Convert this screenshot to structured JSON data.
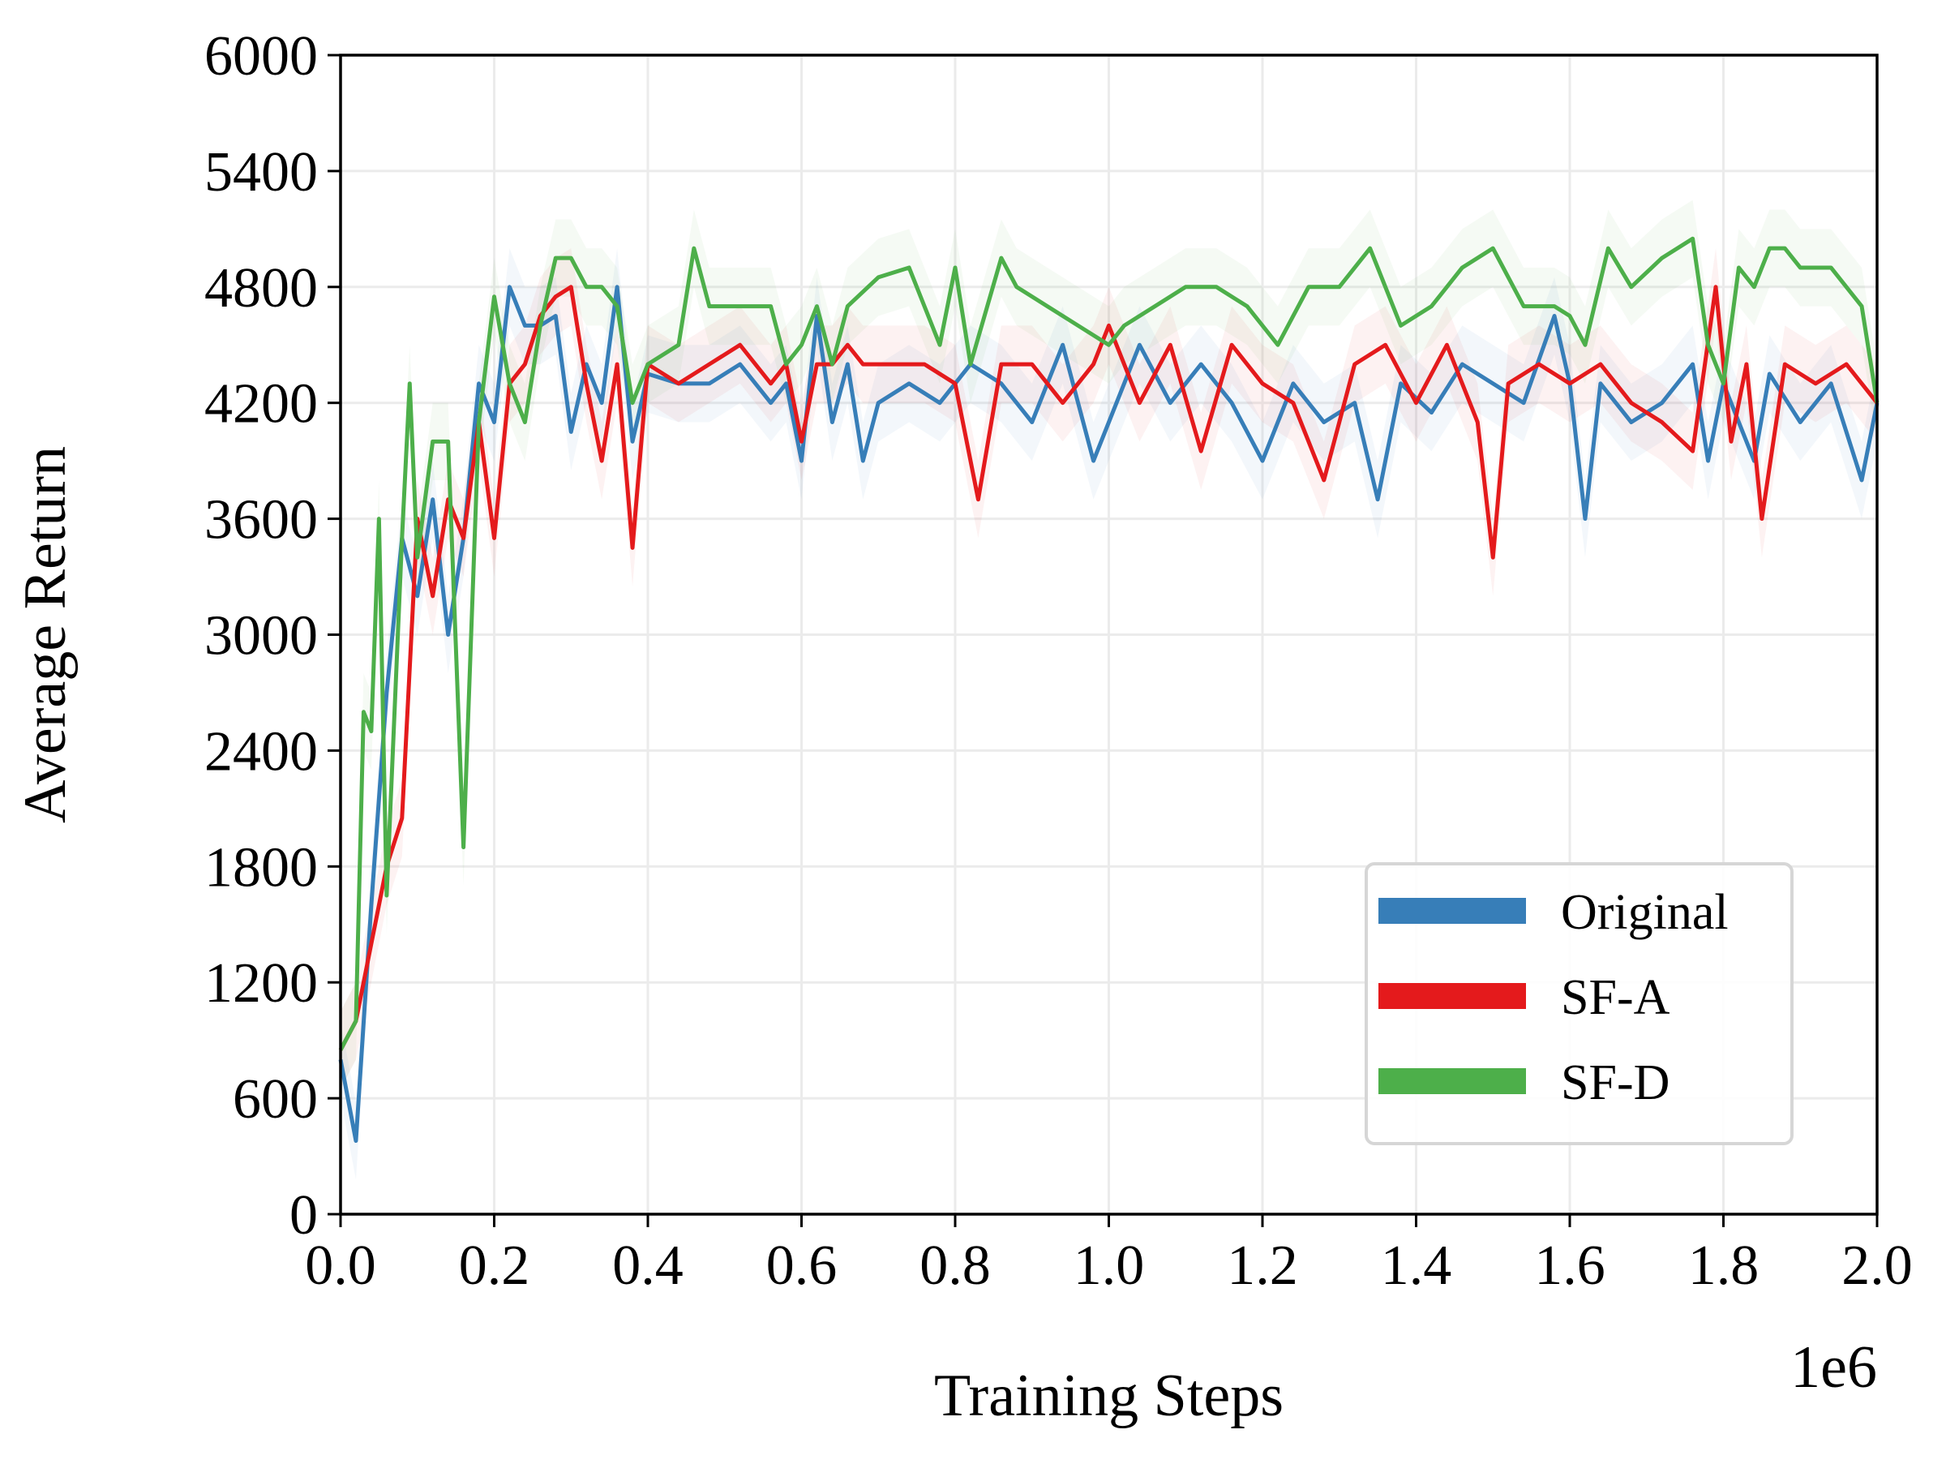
{
  "chart_data": {
    "type": "line",
    "title": "",
    "xlabel": "Training Steps",
    "ylabel": "Average Return",
    "x_offset_label": "1e6",
    "xlim": [
      0.0,
      2.0
    ],
    "ylim": [
      0,
      6000
    ],
    "x_ticks": [
      0.0,
      0.2,
      0.4,
      0.6,
      0.8,
      1.0,
      1.2,
      1.4,
      1.6,
      1.8,
      2.0
    ],
    "x_tick_labels": [
      "0.0",
      "0.2",
      "0.4",
      "0.6",
      "0.8",
      "1.0",
      "1.2",
      "1.4",
      "1.6",
      "1.8",
      "2.0"
    ],
    "y_ticks": [
      0,
      600,
      1200,
      1800,
      2400,
      3000,
      3600,
      4200,
      4800,
      5400,
      6000
    ],
    "y_tick_labels": [
      "0",
      "600",
      "1200",
      "1800",
      "2400",
      "3000",
      "3600",
      "4200",
      "4800",
      "5400",
      "6000"
    ],
    "grid": true,
    "legend_position": "lower-right",
    "band_half_width": 200,
    "series": [
      {
        "name": "Original",
        "color": "#377eb8",
        "x": [
          0.0,
          0.02,
          0.04,
          0.06,
          0.08,
          0.1,
          0.12,
          0.14,
          0.16,
          0.18,
          0.2,
          0.22,
          0.24,
          0.26,
          0.28,
          0.3,
          0.32,
          0.34,
          0.36,
          0.38,
          0.4,
          0.44,
          0.48,
          0.52,
          0.56,
          0.58,
          0.6,
          0.62,
          0.64,
          0.66,
          0.68,
          0.7,
          0.74,
          0.78,
          0.82,
          0.86,
          0.9,
          0.94,
          0.98,
          1.0,
          1.04,
          1.08,
          1.12,
          1.16,
          1.2,
          1.24,
          1.28,
          1.32,
          1.35,
          1.38,
          1.42,
          1.46,
          1.5,
          1.54,
          1.58,
          1.6,
          1.62,
          1.64,
          1.68,
          1.72,
          1.76,
          1.78,
          1.8,
          1.84,
          1.86,
          1.9,
          1.94,
          1.98,
          2.0
        ],
        "values": [
          800,
          380,
          1600,
          2700,
          3500,
          3200,
          3700,
          3000,
          3500,
          4300,
          4100,
          4800,
          4600,
          4600,
          4650,
          4050,
          4400,
          4200,
          4800,
          4000,
          4350,
          4300,
          4300,
          4400,
          4200,
          4300,
          3900,
          4650,
          4100,
          4400,
          3900,
          4200,
          4300,
          4200,
          4400,
          4300,
          4100,
          4500,
          3900,
          4100,
          4500,
          4200,
          4400,
          4200,
          3900,
          4300,
          4100,
          4200,
          3700,
          4300,
          4150,
          4400,
          4300,
          4200,
          4650,
          4300,
          3600,
          4300,
          4100,
          4200,
          4400,
          3900,
          4300,
          3900,
          4350,
          4100,
          4300,
          3800,
          4200
        ]
      },
      {
        "name": "SF-A",
        "color": "#e41a1c",
        "x": [
          0.0,
          0.02,
          0.04,
          0.06,
          0.08,
          0.1,
          0.12,
          0.14,
          0.16,
          0.18,
          0.2,
          0.22,
          0.24,
          0.26,
          0.28,
          0.3,
          0.32,
          0.34,
          0.36,
          0.38,
          0.4,
          0.44,
          0.48,
          0.52,
          0.56,
          0.58,
          0.6,
          0.62,
          0.64,
          0.66,
          0.68,
          0.72,
          0.76,
          0.8,
          0.83,
          0.86,
          0.9,
          0.94,
          0.98,
          1.0,
          1.04,
          1.08,
          1.12,
          1.16,
          1.2,
          1.24,
          1.28,
          1.32,
          1.36,
          1.4,
          1.44,
          1.48,
          1.5,
          1.52,
          1.56,
          1.6,
          1.64,
          1.68,
          1.72,
          1.76,
          1.79,
          1.81,
          1.83,
          1.85,
          1.88,
          1.92,
          1.96,
          2.0
        ],
        "values": [
          850,
          1000,
          1400,
          1800,
          2050,
          3600,
          3200,
          3700,
          3500,
          4100,
          3500,
          4300,
          4400,
          4650,
          4750,
          4800,
          4300,
          3900,
          4400,
          3450,
          4400,
          4300,
          4400,
          4500,
          4300,
          4400,
          4000,
          4400,
          4400,
          4500,
          4400,
          4400,
          4400,
          4300,
          3700,
          4400,
          4400,
          4200,
          4400,
          4600,
          4200,
          4500,
          3950,
          4500,
          4300,
          4200,
          3800,
          4400,
          4500,
          4200,
          4500,
          4100,
          3400,
          4300,
          4400,
          4300,
          4400,
          4200,
          4100,
          3950,
          4800,
          4000,
          4400,
          3600,
          4400,
          4300,
          4400,
          4200
        ]
      },
      {
        "name": "SF-D",
        "color": "#4daf4a",
        "x": [
          0.0,
          0.02,
          0.03,
          0.04,
          0.05,
          0.06,
          0.08,
          0.09,
          0.1,
          0.12,
          0.14,
          0.16,
          0.18,
          0.2,
          0.22,
          0.24,
          0.26,
          0.28,
          0.3,
          0.32,
          0.34,
          0.36,
          0.38,
          0.4,
          0.44,
          0.46,
          0.48,
          0.52,
          0.56,
          0.58,
          0.6,
          0.62,
          0.64,
          0.66,
          0.7,
          0.74,
          0.76,
          0.78,
          0.8,
          0.82,
          0.86,
          0.88,
          0.92,
          0.96,
          1.0,
          1.02,
          1.06,
          1.1,
          1.14,
          1.18,
          1.22,
          1.26,
          1.3,
          1.34,
          1.38,
          1.42,
          1.46,
          1.5,
          1.54,
          1.58,
          1.6,
          1.62,
          1.65,
          1.68,
          1.72,
          1.76,
          1.78,
          1.8,
          1.82,
          1.84,
          1.86,
          1.88,
          1.9,
          1.94,
          1.98,
          2.0
        ],
        "values": [
          850,
          1000,
          2600,
          2500,
          3600,
          1650,
          3500,
          4300,
          3400,
          4000,
          4000,
          1900,
          4100,
          4750,
          4300,
          4100,
          4600,
          4950,
          4950,
          4800,
          4800,
          4700,
          4200,
          4400,
          4500,
          5000,
          4700,
          4700,
          4700,
          4400,
          4500,
          4700,
          4400,
          4700,
          4850,
          4900,
          4700,
          4500,
          4900,
          4400,
          4950,
          4800,
          4700,
          4600,
          4500,
          4600,
          4700,
          4800,
          4800,
          4700,
          4500,
          4800,
          4800,
          5000,
          4600,
          4700,
          4900,
          5000,
          4700,
          4700,
          4650,
          4500,
          5000,
          4800,
          4950,
          5050,
          4500,
          4300,
          4900,
          4800,
          5000,
          5000,
          4900,
          4900,
          4700,
          4200
        ]
      }
    ]
  }
}
